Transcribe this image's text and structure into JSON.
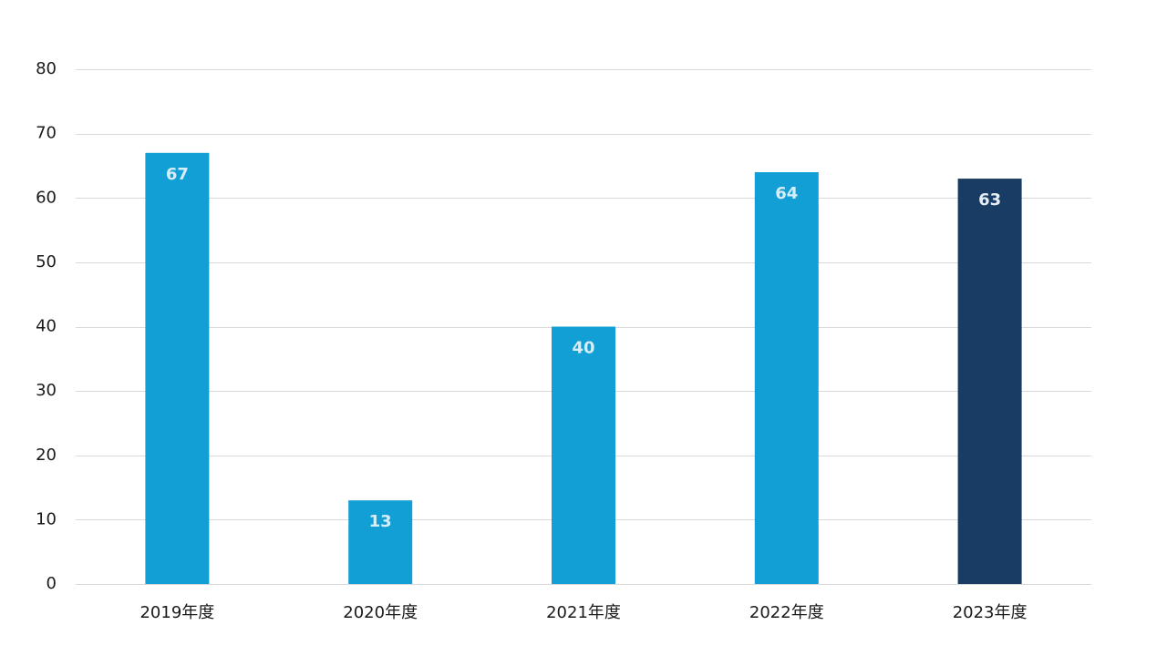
{
  "chart_data": {
    "type": "bar",
    "title": "",
    "xlabel": "",
    "ylabel": "",
    "categories": [
      "2019年度",
      "2020年度",
      "2021年度",
      "2022年度",
      "2023年度"
    ],
    "values": [
      67,
      13,
      40,
      64,
      63
    ],
    "ylim": [
      0,
      80
    ],
    "yticks": [
      0,
      10,
      20,
      30,
      40,
      50,
      60,
      70,
      80
    ],
    "grid": true,
    "legend": "none",
    "colors": {
      "bar": "#119fd6",
      "highlight_bar": "#183c64",
      "data_label_on_bar": "#d6eef8",
      "data_label_on_highlight": "#e6edf5",
      "gridline": "#d9d9d9",
      "axis_text": "#1a1a1a"
    },
    "highlight_index": 4
  }
}
